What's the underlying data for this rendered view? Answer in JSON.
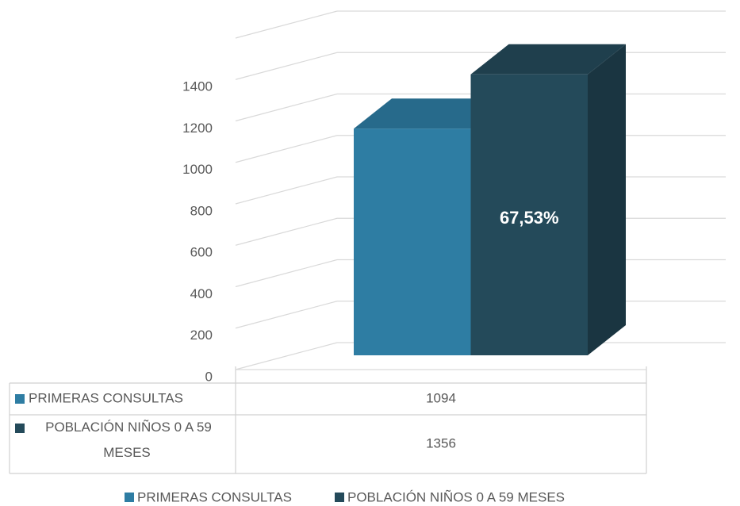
{
  "chart_data": {
    "type": "bar3d",
    "series": [
      {
        "name": "PRIMERAS CONSULTAS",
        "color": "#2e7da3",
        "values": [
          1094
        ]
      },
      {
        "name": "POBLACIÓN NIÑOS 0 A 59 MESES",
        "color": "#244a5a",
        "values": [
          1356
        ]
      }
    ],
    "annotation": "67,53%",
    "ylim": [
      0,
      1600
    ],
    "yticks": [
      0,
      200,
      400,
      600,
      800,
      1000,
      1200,
      1400
    ],
    "grid": true
  }
}
